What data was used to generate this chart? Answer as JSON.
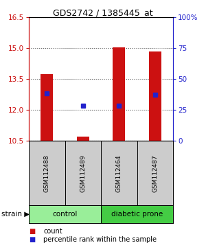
{
  "title": "GDS2742 / 1385445_at",
  "samples": [
    "GSM112488",
    "GSM112489",
    "GSM112464",
    "GSM112487"
  ],
  "bar_tops": [
    13.72,
    10.72,
    15.02,
    14.82
  ],
  "bar_bottom": 10.5,
  "percentile_values": [
    12.8,
    12.2,
    12.2,
    12.75
  ],
  "ylim_left": [
    10.5,
    16.5
  ],
  "yticks_left": [
    10.5,
    12.0,
    13.5,
    15.0,
    16.5
  ],
  "ylim_right": [
    0,
    100
  ],
  "yticks_right": [
    0,
    25,
    50,
    75,
    100
  ],
  "ytick_labels_right": [
    "0",
    "25",
    "50",
    "75",
    "100%"
  ],
  "bar_color": "#cc1111",
  "square_color": "#2222cc",
  "left_axis_color": "#cc1111",
  "right_axis_color": "#2222cc",
  "groups": [
    {
      "label": "control",
      "indices": [
        0,
        1
      ],
      "color": "#99ee99"
    },
    {
      "label": "diabetic prone",
      "indices": [
        2,
        3
      ],
      "color": "#44cc44"
    }
  ],
  "legend_items": [
    {
      "label": "count",
      "color": "#cc1111"
    },
    {
      "label": "percentile rank within the sample",
      "color": "#2222cc"
    }
  ],
  "grid_color": "#555555",
  "sample_box_color": "#cccccc",
  "bar_width": 0.35
}
